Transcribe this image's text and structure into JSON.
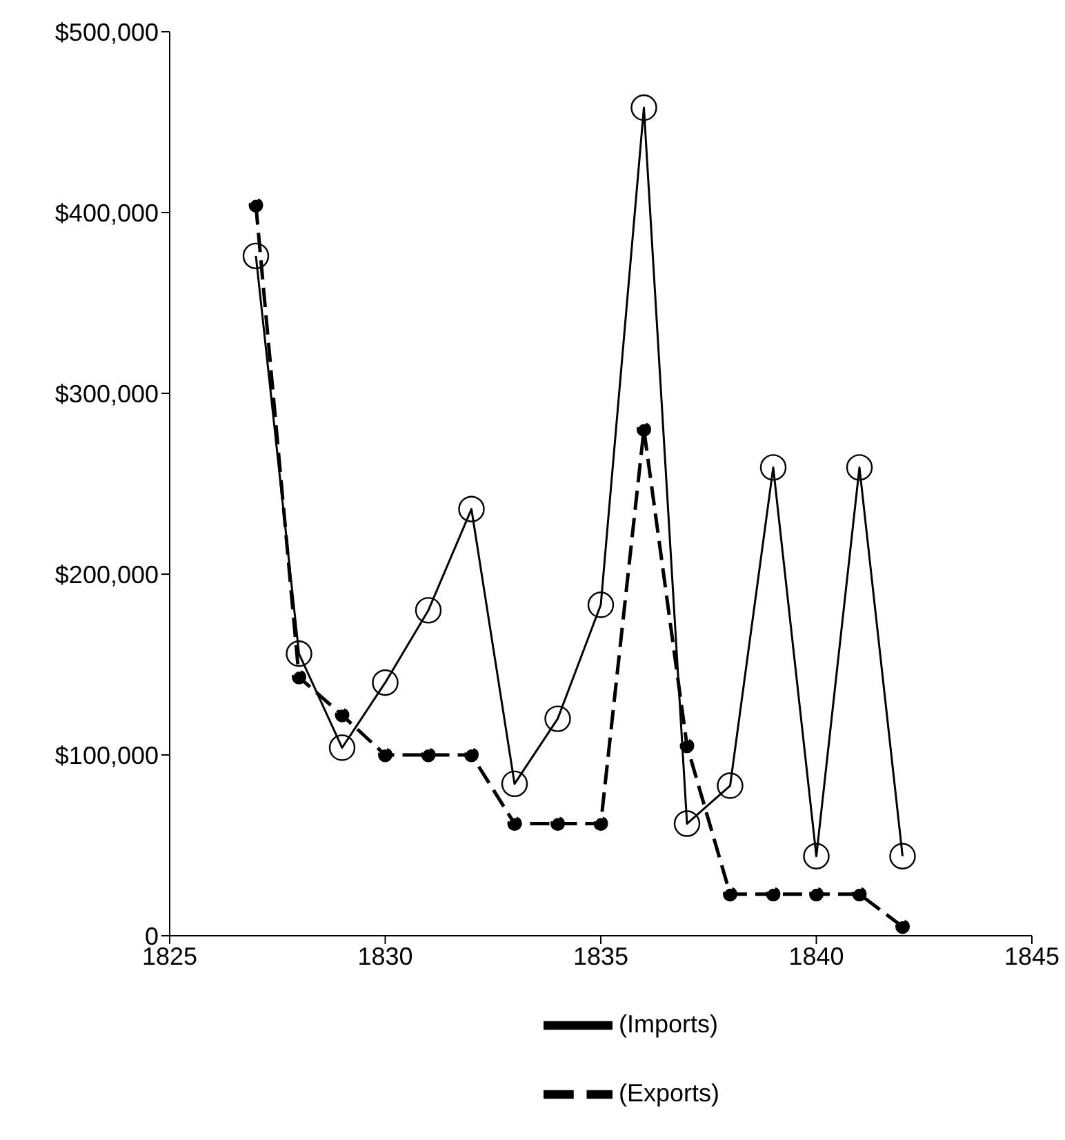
{
  "chart_data": {
    "type": "line",
    "x": [
      1827,
      1828,
      1829,
      1830,
      1831,
      1832,
      1833,
      1834,
      1835,
      1836,
      1837,
      1838,
      1839,
      1840,
      1841,
      1842
    ],
    "series": [
      {
        "name": "(Imports)",
        "color": "#000000",
        "marker": "circle",
        "line_style": "solid",
        "values": [
          376000,
          156000,
          104000,
          140000,
          180000,
          236000,
          84000,
          120000,
          183000,
          458000,
          62000,
          83000,
          259000,
          44000,
          259000,
          44000
        ]
      },
      {
        "name": "(Exports)",
        "color": "#000000",
        "marker": "circle",
        "line_style": "dashed",
        "values": [
          404000,
          143000,
          122000,
          100000,
          100000,
          100000,
          62000,
          62000,
          62000,
          280000,
          105000,
          23000,
          23000,
          23000,
          23000,
          5000
        ]
      }
    ],
    "xlim": [
      1825,
      1845
    ],
    "xticks": [
      1825,
      1830,
      1835,
      1840,
      1845
    ],
    "ylim": [
      0,
      500000
    ],
    "yticks": [
      {
        "value": 0,
        "label": "0"
      },
      {
        "value": 100000,
        "label": "$100,000"
      },
      {
        "value": 200000,
        "label": "$200,000"
      },
      {
        "value": 300000,
        "label": "$300,000"
      },
      {
        "value": 400000,
        "label": "$400,000"
      },
      {
        "value": 500000,
        "label": "$500,000"
      }
    ],
    "grid": false,
    "legend": "bottom"
  }
}
